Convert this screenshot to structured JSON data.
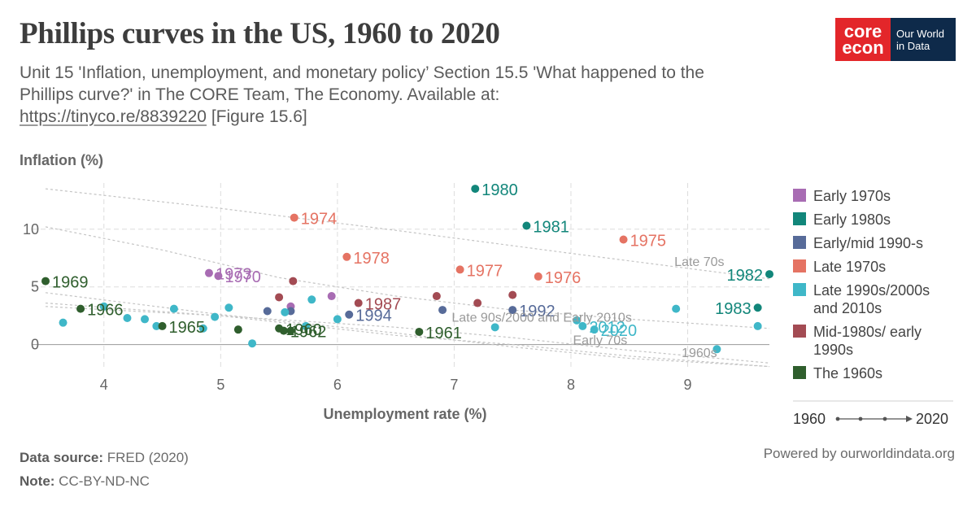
{
  "header": {
    "title": "Phillips curves in the US, 1960 to 2020",
    "subtitle_line1": "Unit 15 'Inflation, unemployment, and monetary policy’ Section 15.5 'What happened to the",
    "subtitle_line2": "Phillips curve?' in The CORE Team, The Economy. Available at:",
    "subtitle_link": "https://tinyco.re/8839220",
    "subtitle_suffix": " [Figure 15.6]"
  },
  "logo": {
    "core_top": "core",
    "core_bottom": "econ",
    "owid_top": "Our World",
    "owid_bottom": "in Data"
  },
  "footer": {
    "source_label": "Data source:",
    "source_value": " FRED (2020)",
    "note_label": "Note:",
    "note_value": " CC-BY-ND-NC",
    "powered": "Powered by ourworldindata.org"
  },
  "timeline": {
    "start": "1960",
    "end": "2020"
  },
  "chart_data": {
    "type": "scatter",
    "ylabel": "Inflation (%)",
    "xlabel": "Unemployment rate (%)",
    "xlim": [
      3.5,
      9.7
    ],
    "ylim": [
      -2,
      14
    ],
    "xticks": [
      4,
      5,
      6,
      7,
      8,
      9
    ],
    "yticks": [
      0,
      5,
      10
    ],
    "grid": true,
    "legend_position": "right",
    "series": [
      {
        "name": "Early 1970s",
        "color": "#a86cb3",
        "points": [
          [
            4.9,
            6.2,
            "1973"
          ],
          [
            4.98,
            5.95,
            "1970"
          ],
          [
            5.6,
            3.3,
            ""
          ],
          [
            5.95,
            4.2,
            ""
          ]
        ]
      },
      {
        "name": "Early 1980s",
        "color": "#12867a",
        "points": [
          [
            7.18,
            13.5,
            "1980"
          ],
          [
            7.62,
            10.3,
            "1981"
          ],
          [
            9.7,
            6.1,
            "1982"
          ],
          [
            9.6,
            3.2,
            "1983"
          ]
        ]
      },
      {
        "name": "Early/mid 1990-s",
        "color": "#576b99",
        "points": [
          [
            6.1,
            2.6,
            "1994"
          ],
          [
            7.5,
            3.0,
            "1992"
          ],
          [
            6.9,
            3.0,
            ""
          ],
          [
            5.4,
            2.9,
            ""
          ],
          [
            5.6,
            2.9,
            ""
          ]
        ]
      },
      {
        "name": "Late 1970s",
        "color": "#e57363",
        "points": [
          [
            5.63,
            11.0,
            "1974"
          ],
          [
            6.08,
            7.6,
            "1978"
          ],
          [
            7.05,
            6.5,
            "1977"
          ],
          [
            8.45,
            9.1,
            "1975"
          ],
          [
            7.72,
            5.9,
            "1976"
          ]
        ]
      },
      {
        "name": "Late 1990s/2000s and 2010s",
        "color": "#3fb7c8",
        "points": [
          [
            8.1,
            1.6,
            "2012"
          ],
          [
            8.2,
            1.3,
            "2020"
          ],
          [
            9.25,
            -0.4,
            ""
          ],
          [
            8.9,
            3.1,
            ""
          ],
          [
            9.6,
            1.6,
            ""
          ],
          [
            5.27,
            0.1,
            ""
          ],
          [
            4.0,
            3.3,
            ""
          ],
          [
            4.2,
            2.3,
            ""
          ],
          [
            3.65,
            1.9,
            ""
          ],
          [
            4.35,
            2.2,
            ""
          ],
          [
            4.45,
            1.6,
            ""
          ],
          [
            4.6,
            3.1,
            ""
          ],
          [
            4.85,
            1.4,
            ""
          ],
          [
            4.95,
            2.4,
            ""
          ],
          [
            5.07,
            3.2,
            ""
          ],
          [
            5.55,
            2.8,
            ""
          ],
          [
            5.78,
            3.9,
            ""
          ],
          [
            5.73,
            1.6,
            ""
          ],
          [
            6.0,
            2.2,
            ""
          ],
          [
            7.35,
            1.5,
            ""
          ],
          [
            8.05,
            2.1,
            ""
          ]
        ]
      },
      {
        "name": "Mid-1980s/ early 1990s",
        "color": "#a34b53",
        "points": [
          [
            6.18,
            3.6,
            "1987"
          ],
          [
            5.62,
            5.5,
            ""
          ],
          [
            5.5,
            4.1,
            ""
          ],
          [
            6.85,
            4.2,
            ""
          ],
          [
            7.2,
            3.6,
            ""
          ],
          [
            7.5,
            4.3,
            ""
          ]
        ]
      },
      {
        "name": "The 1960s",
        "color": "#2f5e2d",
        "points": [
          [
            3.5,
            5.5,
            "1969"
          ],
          [
            3.8,
            3.1,
            "1966"
          ],
          [
            4.5,
            1.6,
            "1965"
          ],
          [
            5.5,
            1.4,
            "1960"
          ],
          [
            5.54,
            1.2,
            "1962"
          ],
          [
            6.7,
            1.1,
            "1961"
          ],
          [
            5.6,
            1.2,
            ""
          ],
          [
            5.15,
            1.3,
            ""
          ]
        ]
      }
    ],
    "annotations": [
      {
        "text": "Late 70s",
        "x": 9.1,
        "y": 6.8
      },
      {
        "text": "Late 90s/2000 and Early 2010s",
        "x": 7.75,
        "y": 2.0
      },
      {
        "text": "Early 70s",
        "x": 8.25,
        "y": 0.0
      },
      {
        "text": "1960s",
        "x": 9.1,
        "y": -1.1
      }
    ]
  }
}
